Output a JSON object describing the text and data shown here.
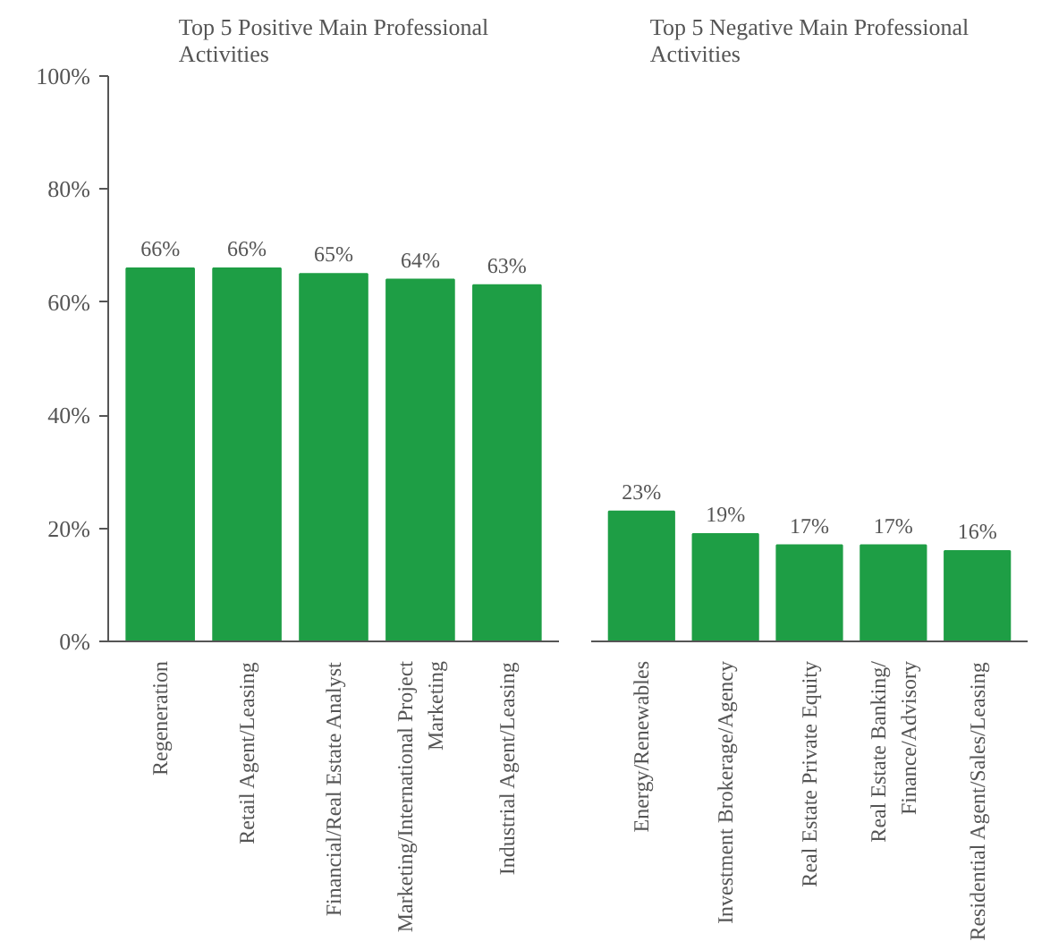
{
  "chart_data": [
    {
      "type": "bar",
      "title": "Top 5 Positive Main Professional Activities",
      "categories": [
        "Regeneration",
        "Retail Agent/Leasing",
        "Financial/Real Estate Analyst",
        "Marketing/International Project Marketing",
        "Industrial Agent/Leasing"
      ],
      "values": [
        66,
        66,
        65,
        64,
        63
      ],
      "value_labels": [
        "66%",
        "66%",
        "65%",
        "64%",
        "63%"
      ],
      "color": "#1e9e45",
      "ylim": [
        0,
        100
      ],
      "yticks": [
        {
          "value": 0,
          "label": "0%"
        },
        {
          "value": 20,
          "label": "20%"
        },
        {
          "value": 40,
          "label": "40%"
        },
        {
          "value": 60,
          "label": "60%"
        },
        {
          "value": 80,
          "label": "80%"
        },
        {
          "value": 100,
          "label": "100%"
        }
      ]
    },
    {
      "type": "bar",
      "title": "Top 5 Negative Main Professional Activities",
      "categories": [
        "Energy/Renewables",
        "Investment Brokerage/Agency",
        "Real Estate Private Equity",
        "Real Estate Banking/ Finance/Advisory",
        "Residential Agent/Sales/Leasing"
      ],
      "values": [
        23,
        19,
        17,
        17,
        16
      ],
      "value_labels": [
        "23%",
        "19%",
        "17%",
        "17%",
        "16%"
      ],
      "color": "#1e9e45",
      "ylim": [
        0,
        100
      ],
      "tick_labels": "x"
    }
  ]
}
